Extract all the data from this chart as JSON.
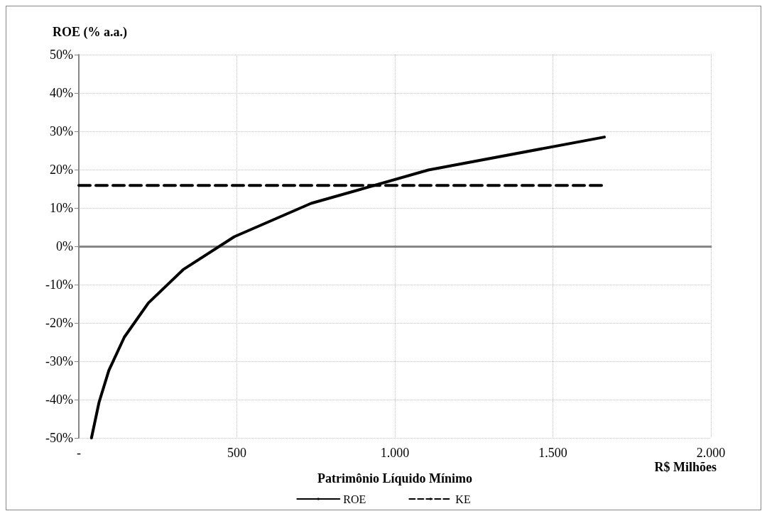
{
  "chart_data": {
    "type": "line",
    "ylabel": "ROE (% a.a.)",
    "xlabel": "Patrimônio Líquido Mínimo",
    "annotations": [
      "R$ Milhões"
    ],
    "series": [
      {
        "name": "ROE",
        "color": "#000000",
        "line_style": "solid",
        "x": [
          40,
          64,
          95,
          144,
          220,
          330,
          492,
          735,
          1106,
          1663
        ],
        "values": [
          -50,
          -40.7,
          -32.4,
          -23.7,
          -14.8,
          -6.1,
          2.5,
          11.2,
          19.9,
          28.5
        ]
      },
      {
        "name": "KE",
        "color": "#000000",
        "line_style": "dashed",
        "x": [
          0,
          1663
        ],
        "values": [
          15.9,
          15.9
        ]
      }
    ],
    "xlim": [
      0,
      2000
    ],
    "xticks": [
      {
        "value": 0,
        "label": "-"
      },
      500,
      {
        "value": 1000,
        "label": "1.000"
      },
      {
        "value": 1500,
        "label": "1.500"
      },
      {
        "value": 2000,
        "label": "2.000"
      }
    ],
    "ylim": [
      -50,
      50
    ],
    "yticks": [
      {
        "value": -50,
        "label": "-50%"
      },
      {
        "value": -40,
        "label": "-40%"
      },
      {
        "value": -30,
        "label": "-30%"
      },
      {
        "value": -20,
        "label": "-20%"
      },
      {
        "value": -10,
        "label": "-10%"
      },
      {
        "value": 0,
        "label": "0%"
      },
      {
        "value": 10,
        "label": "10%"
      },
      {
        "value": 20,
        "label": "20%"
      },
      {
        "value": 30,
        "label": "30%"
      },
      {
        "value": 40,
        "label": "40%"
      },
      {
        "value": 50,
        "label": "50%"
      }
    ],
    "grid": true,
    "legend": "bottom",
    "marker": "none"
  }
}
